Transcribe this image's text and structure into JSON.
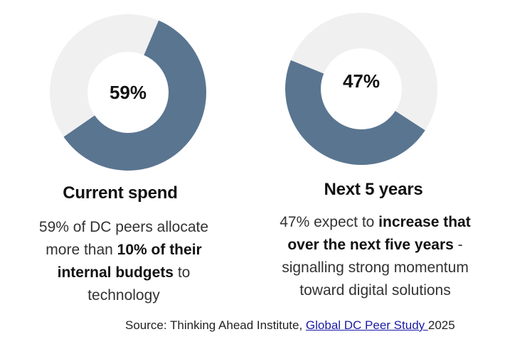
{
  "chart_data": [
    {
      "type": "pie",
      "title": "Current spend",
      "values": [
        59,
        41
      ],
      "center_label": "59%",
      "colors": [
        "#5a7590",
        "#f0f0f0"
      ]
    },
    {
      "type": "pie",
      "title": "Next 5 years",
      "values": [
        47,
        53
      ],
      "center_label": "47%",
      "colors": [
        "#5a7590",
        "#f0f0f0"
      ]
    }
  ],
  "left": {
    "heading": "Current spend",
    "text_1": "59% of DC peers allocate",
    "text_2": "more than ",
    "bold_1": "10% of their",
    "bold_2": "internal budgets",
    "text_3": " to",
    "text_4": "technology"
  },
  "right": {
    "heading": "Next 5 years",
    "text_1": "47% expect to ",
    "bold_1": "increase that",
    "bold_2": "over the next five years",
    "text_2": " -",
    "text_3": "signalling strong momentum",
    "text_4": "toward digital solutions"
  },
  "source": {
    "prefix": "Source: Thinking Ahead Institute, ",
    "link": "Global DC Peer Study ",
    "suffix": "2025"
  }
}
